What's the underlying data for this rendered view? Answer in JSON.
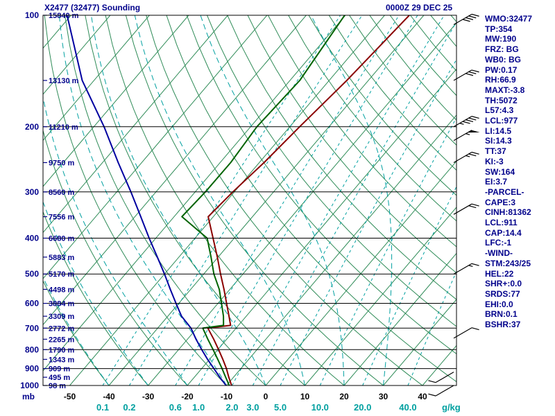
{
  "header": {
    "title": "X2477 (32477) Sounding",
    "datetime": "0000Z 29 DEC 25"
  },
  "colors": {
    "text_blue": "#00008b",
    "axis_black": "#000000",
    "isoline_green": "#2e8b57",
    "mixing_teal": "#00a0a0",
    "temperature_curve": "#8b0000",
    "wet_bulb_curve": "#006400",
    "dew_point_curve": "#0000a0",
    "barb_black": "#000000"
  },
  "stats_panel": {
    "lines": [
      "WMO:32477",
      "TP:354",
      "MW:190",
      "FRZ: BG",
      "WB0: BG",
      "PW:0.17",
      "RH:66.9",
      "MAXT:-3.8",
      "TH:5072",
      "L57:4.3",
      "LCL:977",
      "LI:14.5",
      "SI:14.3",
      "TT:37",
      "KI:-3",
      "SW:164",
      "EI:3.7",
      "-PARCEL-",
      "CAPE:3",
      "CINH:81362",
      "LCL:911",
      "CAP:14.4",
      "LFC:-1",
      "-WIND-",
      "STM:243/25",
      "HEL:22",
      "SHR+:0.0",
      "SRDS:77",
      "EHI:0.0",
      "BRN:0.1",
      "BSHR:37"
    ]
  },
  "axes": {
    "pressure_unit": "mb",
    "pressure_ticks": [
      100,
      200,
      300,
      400,
      500,
      600,
      700,
      800,
      900,
      1000
    ],
    "temp_ticks": [
      -50,
      -40,
      -30,
      -20,
      -10,
      0,
      10,
      20,
      30,
      40
    ],
    "mixing_unit": "g/kg",
    "mixing_ticks": [
      {
        "label": "0.1",
        "w": 0.1
      },
      {
        "label": "0.2",
        "w": 0.2
      },
      {
        "label": "0.6",
        "w": 0.6
      },
      {
        "label": "1.0",
        "w": 1.0
      },
      {
        "label": "2.0",
        "w": 2.0
      },
      {
        "label": "3.0",
        "w": 3.0
      },
      {
        "label": "5.0",
        "w": 5.0
      },
      {
        "label": "10.0",
        "w": 10.0
      },
      {
        "label": "20.0",
        "w": 20.0
      },
      {
        "label": "40.0",
        "w": 40.0
      }
    ],
    "height_labels": [
      {
        "p": 100,
        "label": "15840 m"
      },
      {
        "p": 150,
        "label": "13130 m"
      },
      {
        "p": 200,
        "label": "11210 m"
      },
      {
        "p": 250,
        "label": "9750 m"
      },
      {
        "p": 300,
        "label": "8560 m"
      },
      {
        "p": 350,
        "label": "7556 m"
      },
      {
        "p": 400,
        "label": "6680 m"
      },
      {
        "p": 450,
        "label": "5883 m"
      },
      {
        "p": 500,
        "label": "5170 m"
      },
      {
        "p": 550,
        "label": "4498 m"
      },
      {
        "p": 600,
        "label": "3884 m"
      },
      {
        "p": 650,
        "label": "3309 m"
      },
      {
        "p": 700,
        "label": "2772 m"
      },
      {
        "p": 750,
        "label": "2265 m"
      },
      {
        "p": 800,
        "label": "1790 m"
      },
      {
        "p": 850,
        "label": "1343 m"
      },
      {
        "p": 900,
        "label": "909 m"
      },
      {
        "p": 950,
        "label": "495 m"
      },
      {
        "p": 1000,
        "label": "98 m"
      }
    ]
  },
  "chart_data": {
    "type": "skewt_log_p_sounding",
    "pressure_range_mb": [
      100,
      1000
    ],
    "temp_axis_range_c": [
      -50,
      40
    ],
    "isotherm_step_c": 10,
    "dry_adiabat_theta_range_c": [
      -40,
      200
    ],
    "moist_adiabat_thetaw_range_c": [
      -40,
      30
    ],
    "series": [
      {
        "name": "temperature",
        "color_key": "temperature_curve",
        "points_p_t": [
          [
            1000,
            -8.7
          ],
          [
            950,
            -11.2
          ],
          [
            900,
            -13.7
          ],
          [
            850,
            -16.6
          ],
          [
            800,
            -19.8
          ],
          [
            750,
            -23.3
          ],
          [
            700,
            -27.2
          ],
          [
            688,
            -22.0
          ],
          [
            650,
            -24.4
          ],
          [
            600,
            -27.8
          ],
          [
            550,
            -31.5
          ],
          [
            500,
            -35.7
          ],
          [
            450,
            -40.2
          ],
          [
            400,
            -45.4
          ],
          [
            350,
            -51.3
          ],
          [
            300,
            -50.4
          ],
          [
            250,
            -48.8
          ],
          [
            200,
            -47.5
          ],
          [
            150,
            -45.5
          ],
          [
            100,
            -43.7
          ]
        ]
      },
      {
        "name": "wet-bulb",
        "color_key": "wet_bulb_curve",
        "points_p_t": [
          [
            1000,
            -9.3
          ],
          [
            950,
            -12.0
          ],
          [
            900,
            -14.8
          ],
          [
            850,
            -17.9
          ],
          [
            800,
            -21.2
          ],
          [
            750,
            -24.8
          ],
          [
            700,
            -28.5
          ],
          [
            688,
            -23.8
          ],
          [
            650,
            -25.8
          ],
          [
            600,
            -29.1
          ],
          [
            550,
            -32.7
          ],
          [
            500,
            -37.4
          ],
          [
            450,
            -41.8
          ],
          [
            400,
            -46.9
          ],
          [
            350,
            -58.0
          ],
          [
            300,
            -57.4
          ],
          [
            250,
            -57.3
          ],
          [
            200,
            -58.4
          ],
          [
            150,
            -57.5
          ],
          [
            100,
            -60.2
          ]
        ]
      },
      {
        "name": "dew-point",
        "color_key": "dew_point_curve",
        "points_p_t": [
          [
            1000,
            -10.1
          ],
          [
            950,
            -13.5
          ],
          [
            900,
            -16.9
          ],
          [
            850,
            -20.5
          ],
          [
            800,
            -24.1
          ],
          [
            750,
            -27.8
          ],
          [
            700,
            -31.5
          ],
          [
            650,
            -36.5
          ],
          [
            600,
            -40.7
          ],
          [
            550,
            -45.2
          ],
          [
            500,
            -50.0
          ],
          [
            450,
            -55.5
          ],
          [
            400,
            -61.7
          ],
          [
            350,
            -68.5
          ],
          [
            300,
            -76.4
          ],
          [
            250,
            -86.0
          ],
          [
            200,
            -97.4
          ],
          [
            150,
            -113.0
          ],
          [
            100,
            -131.0
          ]
        ]
      }
    ],
    "wind_barbs": [
      {
        "p": 106,
        "speed_kt": 40,
        "dir_deg": 60
      },
      {
        "p": 150,
        "speed_kt": 30,
        "dir_deg": 60
      },
      {
        "p": 200,
        "speed_kt": 45,
        "dir_deg": 60
      },
      {
        "p": 218,
        "speed_kt": 55,
        "dir_deg": 60
      },
      {
        "p": 250,
        "speed_kt": 25,
        "dir_deg": 60
      },
      {
        "p": 345,
        "speed_kt": 20,
        "dir_deg": 60
      },
      {
        "p": 500,
        "speed_kt": 15,
        "dir_deg": 60
      },
      {
        "p": 745,
        "speed_kt": 10,
        "dir_deg": 60
      },
      {
        "p": 920,
        "speed_kt": 10,
        "dir_deg": 240
      },
      {
        "p": 1000,
        "speed_kt": 10,
        "dir_deg": 240
      }
    ]
  }
}
